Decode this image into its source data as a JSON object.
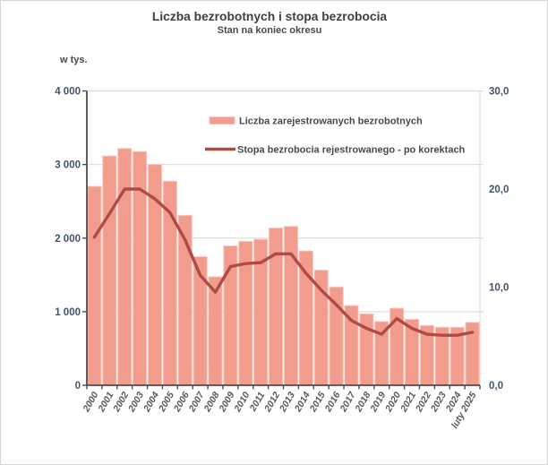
{
  "chart": {
    "title": "Liczba bezrobotnych i stopa bezrobocia",
    "subtitle": "Stan na koniec okresu",
    "left_axis_unit": "w tys.",
    "legend": {
      "bar_label": "Liczba zarejestrowanych bezrobotnych",
      "line_label": "Stopa bezrobocia rejestrowanego - po korektach"
    }
  },
  "chart_data": {
    "type": "bar",
    "combo": "bar+line",
    "title": "Liczba bezrobotnych i stopa bezrobocia",
    "subtitle": "Stan na koniec okresu",
    "categories": [
      "2000",
      "2001",
      "2002",
      "2003",
      "2004",
      "2005",
      "2006",
      "2007",
      "2008",
      "2009",
      "2010",
      "2011",
      "2012",
      "2013",
      "2014",
      "2015",
      "2016",
      "2017",
      "2018",
      "2019",
      "2020",
      "2021",
      "2022",
      "2023",
      "2024",
      "luty 2025"
    ],
    "series": [
      {
        "name": "Liczba zarejestrowanych bezrobotnych",
        "type": "bar",
        "axis": "left",
        "unit": "tys.",
        "color": "#f29c8d",
        "border_color": "#f8c5ba",
        "values": [
          2703,
          3115,
          3217,
          3176,
          3000,
          2773,
          2309,
          1747,
          1474,
          1893,
          1955,
          1983,
          2137,
          2158,
          1825,
          1563,
          1335,
          1082,
          969,
          866,
          1046,
          895,
          812,
          788,
          787,
          854
        ]
      },
      {
        "name": "Stopa bezrobocia rejestrowanego - po korektach",
        "type": "line",
        "axis": "right",
        "unit": "%",
        "color": "#b14a44",
        "values": [
          15.1,
          17.5,
          20.0,
          20.0,
          19.0,
          17.6,
          14.8,
          11.2,
          9.5,
          12.1,
          12.4,
          12.5,
          13.4,
          13.4,
          11.4,
          9.7,
          8.2,
          6.6,
          5.8,
          5.2,
          6.8,
          5.8,
          5.2,
          5.1,
          5.1,
          5.4
        ]
      }
    ],
    "left_axis": {
      "label": "w tys.",
      "range": [
        0,
        4000
      ],
      "ticks": [
        {
          "value": 4000,
          "label": "4 000"
        },
        {
          "value": 3000,
          "label": "3 000"
        },
        {
          "value": 2000,
          "label": "2 000"
        },
        {
          "value": 1000,
          "label": "1 000"
        },
        {
          "value": 0,
          "label": "0"
        }
      ]
    },
    "right_axis": {
      "range": [
        0,
        30
      ],
      "ticks": [
        {
          "value": 30,
          "label": "30,0"
        },
        {
          "value": 20,
          "label": "20,0"
        },
        {
          "value": 10,
          "label": "10,0"
        },
        {
          "value": 0,
          "label": "0,0"
        }
      ]
    },
    "grid": "horizontal",
    "legend_position": "top-inside"
  },
  "colors": {
    "background": "#ffffff",
    "frame_border": "#d6d6d6",
    "gridline": "#d9d9d9",
    "axis_line": "#4d4d4d",
    "y_tick_text": "#44546a",
    "x_tick_text": "#595959",
    "title_text": "#3f3f3f"
  }
}
